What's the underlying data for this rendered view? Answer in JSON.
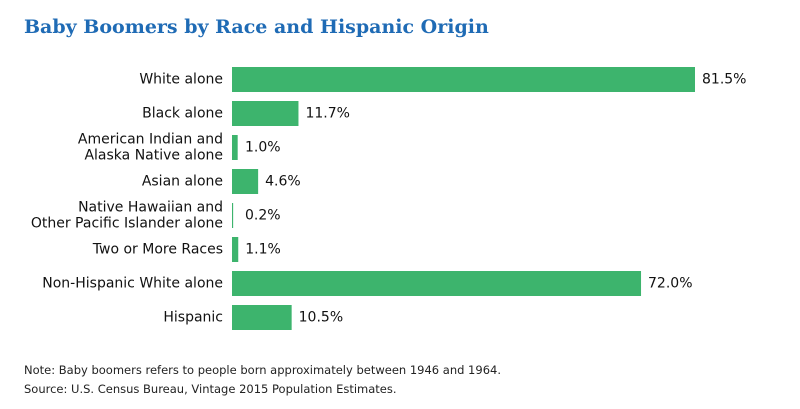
{
  "chart_data": {
    "type": "bar",
    "orientation": "horizontal",
    "title": "Baby Boomers by Race and Hispanic Origin",
    "categories": [
      [
        "White alone"
      ],
      [
        "Black alone"
      ],
      [
        "American Indian and",
        "Alaska Native alone"
      ],
      [
        "Asian alone"
      ],
      [
        "Native Hawaiian and",
        "Other Pacific Islander alone"
      ],
      [
        "Two or More Races"
      ],
      [
        "Non-Hispanic White alone"
      ],
      [
        "Hispanic"
      ]
    ],
    "values": [
      81.5,
      11.7,
      1.0,
      4.6,
      0.2,
      1.1,
      72.0,
      10.5
    ],
    "value_labels": [
      "81.5%",
      "11.7%",
      "1.0%",
      "4.6%",
      "0.2%",
      "1.1%",
      "72.0%",
      "10.5%"
    ],
    "xlim": [
      0,
      100
    ],
    "grid": false,
    "bar_color": "#3db46d"
  },
  "notes": {
    "note": "Note: Baby boomers refers to people born approximately between 1946 and 1964.",
    "source": "Source: U.S. Census Bureau, Vintage 2015 Population Estimates."
  }
}
